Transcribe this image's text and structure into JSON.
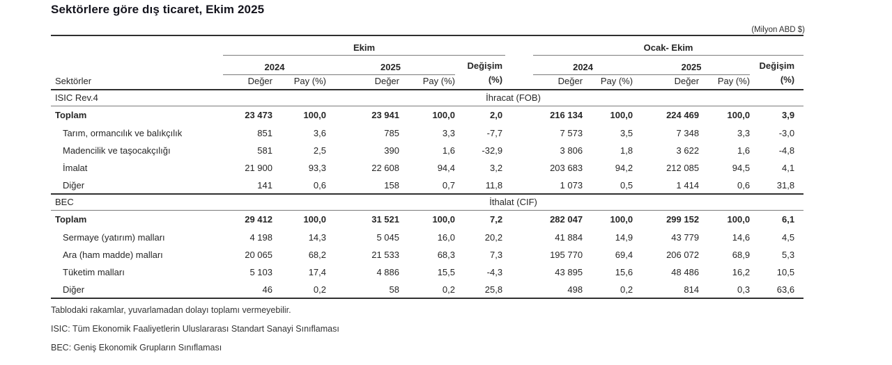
{
  "page": {
    "title": "Sektörlere göre dış ticaret, Ekim 2025",
    "unit_note": "(Milyon ABD $)"
  },
  "table": {
    "row_header": "Sektörler",
    "col_groups": [
      {
        "label": "Ekim"
      },
      {
        "label": "Ocak- Ekim"
      }
    ],
    "year_headers": [
      "2024",
      "2025"
    ],
    "value_label": "Değer",
    "share_label": "Pay (%)",
    "change_label": "Değişim",
    "change_unit": "(%)",
    "sections": [
      {
        "code": "ISIC  Rev.4",
        "flow": "İhracat (FOB)",
        "rows": [
          {
            "label": "Toplam",
            "bold": true,
            "indent": false,
            "values": [
              "23 473",
              "100,0",
              "23 941",
              "100,0",
              "2,0",
              "216 134",
              "100,0",
              "224 469",
              "100,0",
              "3,9"
            ]
          },
          {
            "label": "Tarım, ormancılık ve balıkçılık",
            "bold": false,
            "indent": true,
            "values": [
              "851",
              "3,6",
              "785",
              "3,3",
              "-7,7",
              "7 573",
              "3,5",
              "7 348",
              "3,3",
              "-3,0"
            ]
          },
          {
            "label": "Madencilik ve taşocakçılığı",
            "bold": false,
            "indent": true,
            "values": [
              "581",
              "2,5",
              "390",
              "1,6",
              "-32,9",
              "3 806",
              "1,8",
              "3 622",
              "1,6",
              "-4,8"
            ]
          },
          {
            "label": "İmalat",
            "bold": false,
            "indent": true,
            "values": [
              "21 900",
              "93,3",
              "22 608",
              "94,4",
              "3,2",
              "203 683",
              "94,2",
              "212 085",
              "94,5",
              "4,1"
            ]
          },
          {
            "label": "Diğer",
            "bold": false,
            "indent": true,
            "values": [
              "141",
              "0,6",
              "158",
              "0,7",
              "11,8",
              "1 073",
              "0,5",
              "1 414",
              "0,6",
              "31,8"
            ]
          }
        ]
      },
      {
        "code": "BEC",
        "flow": "İthalat (CIF)",
        "rows": [
          {
            "label": "Toplam",
            "bold": true,
            "indent": false,
            "values": [
              "29 412",
              "100,0",
              "31 521",
              "100,0",
              "7,2",
              "282 047",
              "100,0",
              "299 152",
              "100,0",
              "6,1"
            ]
          },
          {
            "label": "Sermaye (yatırım) malları",
            "bold": false,
            "indent": true,
            "values": [
              "4 198",
              "14,3",
              "5 045",
              "16,0",
              "20,2",
              "41 884",
              "14,9",
              "43 779",
              "14,6",
              "4,5"
            ]
          },
          {
            "label": "Ara (ham madde) malları",
            "bold": false,
            "indent": true,
            "values": [
              "20 065",
              "68,2",
              "21 533",
              "68,3",
              "7,3",
              "195 770",
              "69,4",
              "206 072",
              "68,9",
              "5,3"
            ]
          },
          {
            "label": "Tüketim malları",
            "bold": false,
            "indent": true,
            "values": [
              "5 103",
              "17,4",
              "4 886",
              "15,5",
              "-4,3",
              "43 895",
              "15,6",
              "48 486",
              "16,2",
              "10,5"
            ]
          },
          {
            "label": "Diğer",
            "bold": false,
            "indent": true,
            "values": [
              "46",
              "0,2",
              "58",
              "0,2",
              "25,8",
              "498",
              "0,2",
              "814",
              "0,3",
              "63,6"
            ]
          }
        ]
      }
    ]
  },
  "footnotes": [
    "Tablodaki rakamlar, yuvarlamadan dolayı toplamı vermeyebilir.",
    "ISIC: Tüm Ekonomik Faaliyetlerin Uluslararası Standart Sanayi Sınıflaması",
    "BEC: Geniş Ekonomik Grupların Sınıflaması"
  ]
}
